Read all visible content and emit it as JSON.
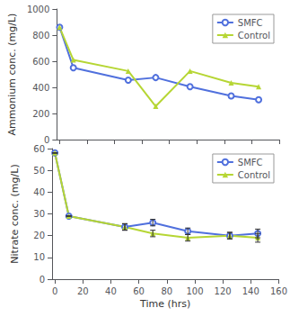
{
  "chart_data": [
    {
      "type": "line",
      "ylabel": "Ammonium conc. (mg/L)",
      "x": [
        0,
        10,
        50,
        70,
        95,
        125,
        145
      ],
      "series": [
        {
          "name": "SMFC",
          "values": [
            860,
            550,
            455,
            475,
            405,
            335,
            305
          ],
          "marker": "circle"
        },
        {
          "name": "Control",
          "values": [
            860,
            610,
            525,
            255,
            525,
            435,
            405
          ],
          "marker": "triangle"
        }
      ],
      "xlim": [
        -2,
        160
      ],
      "xticks": [
        0,
        20,
        40,
        60,
        80,
        100,
        120,
        140,
        160
      ],
      "ylim": [
        0,
        1000
      ],
      "yticks": [
        0,
        200,
        400,
        600,
        800,
        1000
      ],
      "legend": "upper right",
      "grid": false,
      "tick_labels": "y"
    },
    {
      "type": "line",
      "ylabel": "Nitrate conc. (mg/L)",
      "xlabel": "Time (hrs)",
      "x": [
        0,
        10,
        50,
        70,
        95,
        125,
        145
      ],
      "series": [
        {
          "name": "SMFC",
          "values": [
            58,
            29,
            24,
            26,
            22,
            20,
            21
          ],
          "yerr": [
            0,
            0,
            1.5,
            1.5,
            1.5,
            1.5,
            2.0
          ],
          "marker": "circle"
        },
        {
          "name": "Control",
          "values": [
            58,
            29,
            24,
            21,
            19,
            20,
            19
          ],
          "yerr": [
            0,
            0,
            1.5,
            1.5,
            1.5,
            1.5,
            2.0
          ],
          "marker": "triangle"
        }
      ],
      "xlim": [
        -2,
        160
      ],
      "xticks": [
        0,
        20,
        40,
        60,
        80,
        100,
        120,
        140,
        160
      ],
      "ylim": [
        0,
        60
      ],
      "yticks": [
        0,
        10,
        20,
        30,
        40,
        50,
        60
      ],
      "legend": "upper right",
      "grid": false
    }
  ]
}
